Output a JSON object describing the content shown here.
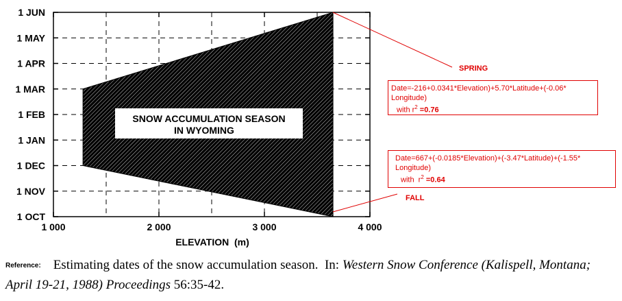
{
  "chart_data": {
    "type": "area",
    "title": "SNOW ACCUMULATION SEASON IN WYOMING",
    "title_lines": [
      "SNOW ACCUMULATION SEASON",
      "IN WYOMING"
    ],
    "xlabel": "ELEVATION  (m)",
    "xlim": [
      1000,
      4000
    ],
    "x_ticks": [
      1000,
      2000,
      3000,
      4000
    ],
    "x_tick_labels": [
      "1 000",
      "2 000",
      "3 000",
      "4 000"
    ],
    "y_tick_labels": [
      "1 OCT",
      "1 NOV",
      "1 DEC",
      "1 JAN",
      "1 FEB",
      "1 MAR",
      "1 APR",
      "1 MAY",
      "1 JUN"
    ],
    "ylim": [
      "1 OCT",
      "1 JUN"
    ],
    "grid": true,
    "grid_style": "dashed",
    "x_grid": [
      1500,
      2000,
      2500,
      3000,
      3500
    ],
    "region": {
      "fill": "#000000",
      "pattern": "hatched",
      "spring_line": {
        "name": "SPRING",
        "x": [
          1280,
          3650
        ],
        "y": [
          "1 MAR",
          "1 JUN"
        ]
      },
      "fall_line": {
        "name": "FALL",
        "x": [
          1280,
          3650
        ],
        "y": [
          "1 DEC",
          "1 OCT"
        ]
      }
    },
    "annotations": [
      {
        "label": "SPRING",
        "equation_lines": [
          "Date=-216+0.0341*Elevation)+5.70*Latitude+(-0.06*",
          "Longitude)"
        ],
        "r2_prefix": "with r",
        "r2_sup": "2",
        "r2_value": "=0.76"
      },
      {
        "label": "FALL",
        "equation_lines": [
          "Date=667+(-0.0185*Elevation)+(-3.47*Latitude)+(-1.55*",
          "Longitude)"
        ],
        "r2_prefix": "with  r",
        "r2_sup": "2",
        "r2_value": "=0.64"
      }
    ],
    "colors": {
      "annotation": "#e00000",
      "axis": "#000000",
      "region": "#000000"
    }
  },
  "reference": {
    "label": "Reference:",
    "text_1": "Estimating dates of the snow accumulation season.  In: ",
    "journal": "Western Snow Conference (Kalispell, Montana; April 19-21, 1988) Proceedings",
    "text_2": " 56:35-42."
  }
}
